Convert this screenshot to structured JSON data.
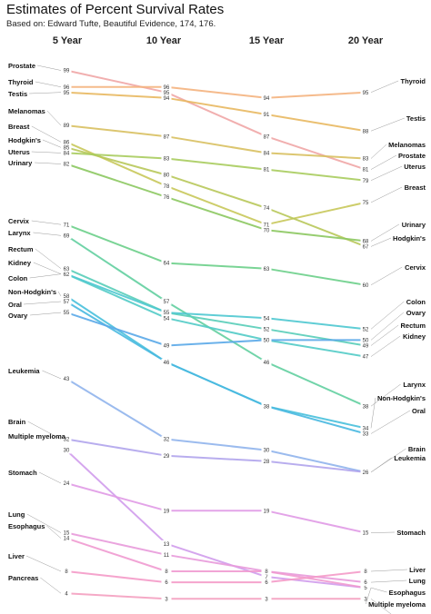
{
  "title": "Estimates of Percent Survival Rates",
  "subtitle": "Based on: Edward Tufte, Beautiful Evidence, 174, 176.",
  "chart_data": {
    "type": "slope",
    "categories": [
      "5 Year",
      "10 Year",
      "15 Year",
      "20 Year"
    ],
    "ylim": [
      2,
      100
    ],
    "series": [
      {
        "name": "Prostate",
        "values": [
          99,
          95,
          87,
          81
        ],
        "color": "#f0a6a6"
      },
      {
        "name": "Thyroid",
        "values": [
          96,
          96,
          94,
          95
        ],
        "color": "#f4b27e"
      },
      {
        "name": "Testis",
        "values": [
          95,
          94,
          91,
          88
        ],
        "color": "#e8b860"
      },
      {
        "name": "Melanomas",
        "values": [
          89,
          87,
          84,
          83
        ],
        "color": "#d8c060"
      },
      {
        "name": "Breast",
        "values": [
          86,
          78,
          71,
          75
        ],
        "color": "#c8c85a"
      },
      {
        "name": "Hodgkin's",
        "values": [
          85,
          80,
          74,
          67
        ],
        "color": "#b8c85a"
      },
      {
        "name": "Uterus",
        "values": [
          84,
          83,
          81,
          79
        ],
        "color": "#a8cc5e"
      },
      {
        "name": "Urinary",
        "values": [
          82,
          76,
          70,
          68
        ],
        "color": "#8cc860"
      },
      {
        "name": "Cervix",
        "values": [
          71,
          64,
          63,
          60
        ],
        "color": "#6ccf8a"
      },
      {
        "name": "Larynx",
        "values": [
          69,
          57,
          46,
          38
        ],
        "color": "#62cfa0"
      },
      {
        "name": "Rectum",
        "values": [
          63,
          55,
          52,
          49
        ],
        "color": "#58cdb8"
      },
      {
        "name": "Kidney",
        "values": [
          62,
          54,
          50,
          47
        ],
        "color": "#52cbc6"
      },
      {
        "name": "Colon",
        "values": [
          62,
          55,
          54,
          52
        ],
        "color": "#4ec8d0"
      },
      {
        "name": "Non-Hodgkin's",
        "values": [
          58,
          46,
          38,
          34
        ],
        "color": "#48c0dc"
      },
      {
        "name": "Oral",
        "values": [
          57,
          46,
          38,
          33
        ],
        "color": "#48b8e0"
      },
      {
        "name": "Ovary",
        "values": [
          55,
          49,
          50,
          50
        ],
        "color": "#5aa8e8"
      },
      {
        "name": "Leukemia",
        "values": [
          43,
          32,
          30,
          26
        ],
        "color": "#90b4ec"
      },
      {
        "name": "Brain",
        "values": [
          32,
          29,
          28,
          26
        ],
        "color": "#b0a4ec"
      },
      {
        "name": "Multiple myeloma",
        "values": [
          30,
          13,
          7,
          5
        ],
        "color": "#d09cec"
      },
      {
        "name": "Stomach",
        "values": [
          24,
          19,
          19,
          15
        ],
        "color": "#e09ae6"
      },
      {
        "name": "Lung",
        "values": [
          15,
          11,
          8,
          6
        ],
        "color": "#e89ada"
      },
      {
        "name": "Esophagus",
        "values": [
          14,
          8,
          8,
          5
        ],
        "color": "#f09ad0"
      },
      {
        "name": "Liver",
        "values": [
          8,
          6,
          6,
          8
        ],
        "color": "#f49ac8"
      },
      {
        "name": "Pancreas",
        "values": [
          4,
          3,
          3,
          3
        ],
        "color": "#f4a0c0"
      }
    ],
    "right_labels": [
      {
        "name": "Thyroid",
        "value": 95
      },
      {
        "name": "Testis",
        "value": 88
      },
      {
        "name": "Melanomas",
        "value": 83
      },
      {
        "name": "Prostate",
        "value": 81
      },
      {
        "name": "Uterus",
        "value": 79
      },
      {
        "name": "Breast",
        "value": 75
      },
      {
        "name": "Urinary",
        "value": 68
      },
      {
        "name": "Hodgkin's",
        "value": 67
      },
      {
        "name": "Cervix",
        "value": 60
      },
      {
        "name": "Colon",
        "value": 52
      },
      {
        "name": "Ovary",
        "value": 50
      },
      {
        "name": "Rectum",
        "value": 49
      },
      {
        "name": "Kidney",
        "value": 47
      },
      {
        "name": "Larynx",
        "value": 38
      },
      {
        "name": "Non-Hodgkin's",
        "value": 34
      },
      {
        "name": "Oral",
        "value": 33
      },
      {
        "name": "Brain",
        "value": 26
      },
      {
        "name": "Leukemia",
        "value": 26
      },
      {
        "name": "Stomach",
        "value": 15
      },
      {
        "name": "Liver",
        "value": 8
      },
      {
        "name": "Lung",
        "value": 6
      },
      {
        "name": "Esophagus",
        "value": 5
      },
      {
        "name": "Multiple myeloma",
        "value": 5
      },
      {
        "name": "Pancreas",
        "value": 3
      }
    ],
    "grid": false,
    "legend": "none"
  }
}
